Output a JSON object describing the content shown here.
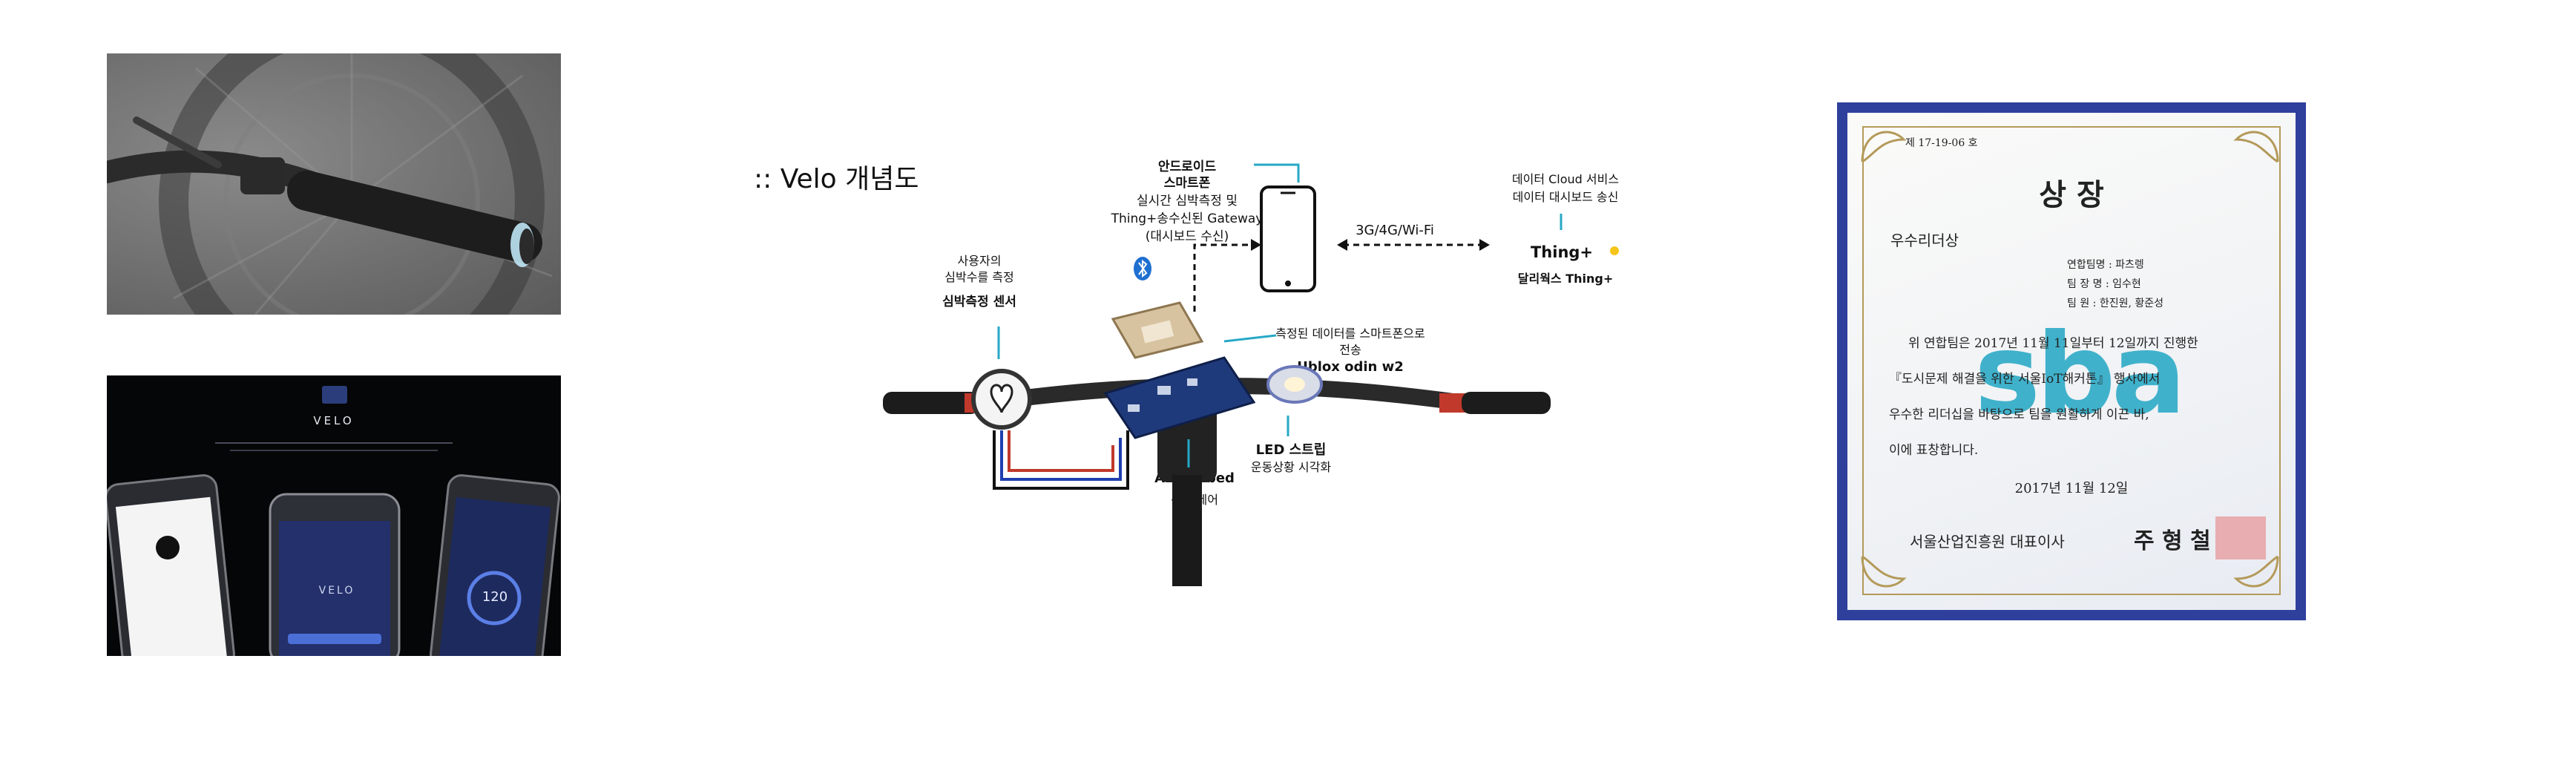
{
  "diagram": {
    "title": ":: Velo 개념도",
    "smartphone": {
      "title_line1": "안드로이드",
      "title_line2": "스마트폰",
      "desc_line1": "실시간 심박측정 및",
      "desc_line2": "Thing+송수신된 Gateway",
      "desc_line3": "(대시보드 수신)"
    },
    "connection": "3G/4G/Wi-Fi",
    "cloud": {
      "desc_line1": "데이터 Cloud 서비스",
      "desc_line2": "데이터 대시보드 송신",
      "logo": "Thing+",
      "name": "달리웍스 Thing+"
    },
    "heart_sensor": {
      "desc_line1": "사용자의",
      "desc_line2": "심박수를 측정",
      "name": "심박측정 센서"
    },
    "ublox": {
      "desc_line1": "측정된 데이터를 스마트폰으로",
      "desc_line2": "전송",
      "name": "Ublox odin w2"
    },
    "led": {
      "name": "LED 스트립",
      "desc": "운동상황 시각화"
    },
    "mbed": {
      "name": "ARM Mbed",
      "desc": "센서 제어"
    }
  },
  "app_screens": {
    "title": "VELO",
    "center_logo": "VELO",
    "right_value": "120"
  },
  "certificate": {
    "serial": "제 17-19-06 호",
    "title": "상    장",
    "award": "우수리더상",
    "team_label": "연합팀명 : 파츠렝",
    "leader_label": "팀 장 명 : 임수현",
    "member_label": "팀    원 : 한진원, 황준성",
    "body_line1": "위 연합팀은 2017년 11월 11일부터 12일까지 진행한",
    "body_line2": "『도시문제 해결을 위한 서울IoT해커톤』 행사에서",
    "body_line3": "우수한 리더십을 바탕으로 팀을 원활하게 이끈 바,",
    "body_line4": "이에 표창합니다.",
    "date": "2017년  11월  12일",
    "issuer": "서울산업진흥원 대표이사",
    "signer": "주 형 철",
    "watermark": "sba"
  },
  "colors": {
    "cert_border": "#2f3f9c",
    "sba_logo": "#22a6c4",
    "pointer_line": "#27a8c6",
    "bluetooth": "#1f6fd1"
  }
}
